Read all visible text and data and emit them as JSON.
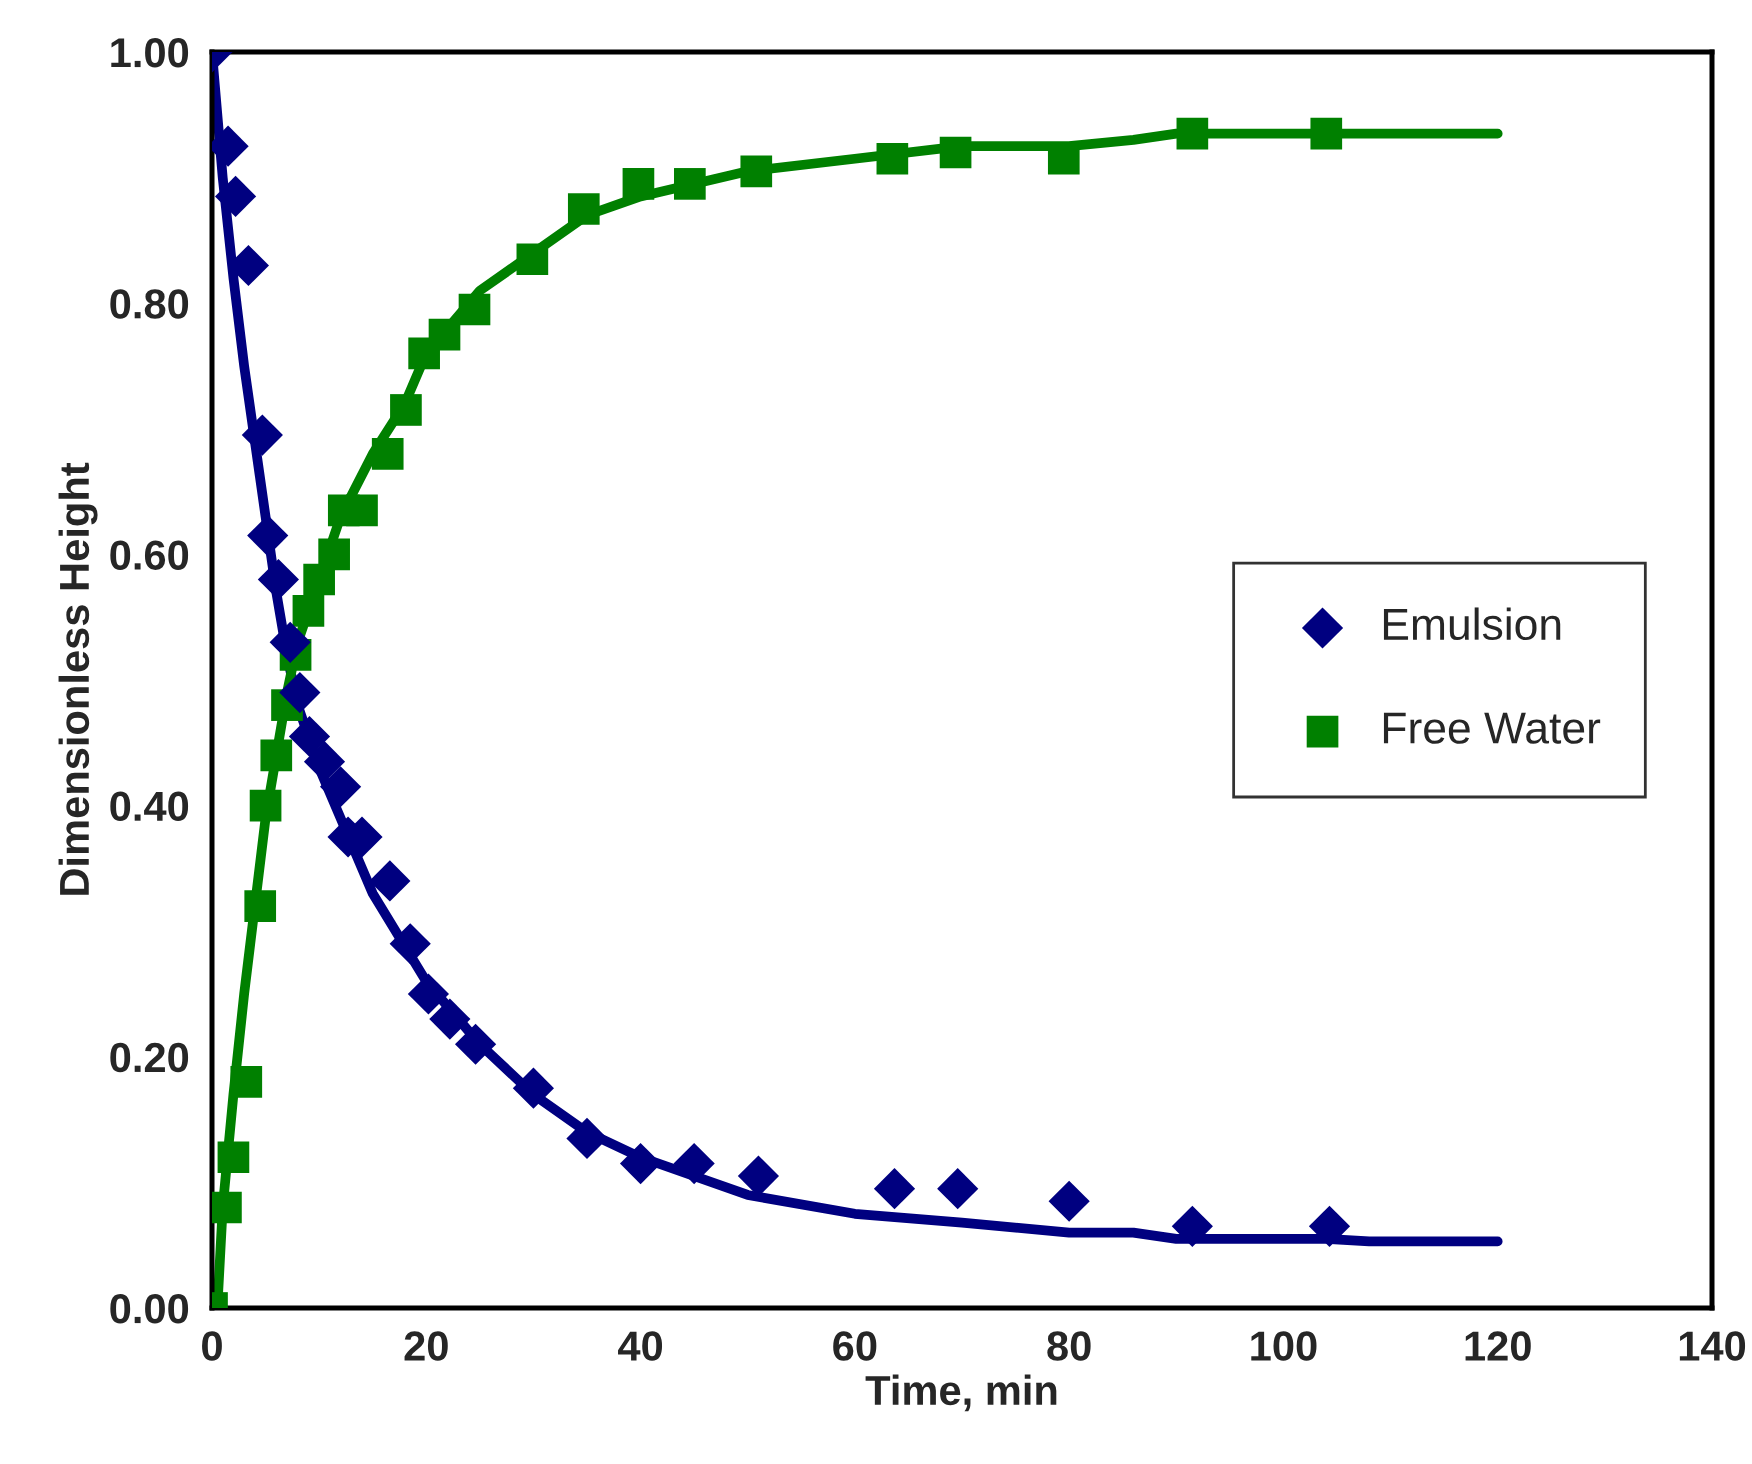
{
  "chart_data": {
    "type": "scatter",
    "xlabel": "Time, min",
    "ylabel": "Dimensionless Height",
    "xlim": [
      0,
      140
    ],
    "xticks": [
      0,
      20,
      40,
      60,
      80,
      100,
      120,
      140
    ],
    "ylim": [
      0,
      1
    ],
    "yticks": [
      {
        "value": 0,
        "label": "0.00"
      },
      {
        "value": 0.2,
        "label": "0.20"
      },
      {
        "value": 0.4,
        "label": "0.40"
      },
      {
        "value": 0.6,
        "label": "0.60"
      },
      {
        "value": 0.8,
        "label": "0.80"
      },
      {
        "value": 1,
        "label": "1.00"
      }
    ],
    "grid": false,
    "legend": "right",
    "series": [
      {
        "name": "Emulsion",
        "marker": "diamond",
        "color": "#000080",
        "x": [
          0,
          1.5,
          2.2,
          3.4,
          4.7,
          5.2,
          6.2,
          7.3,
          8.2,
          9.1,
          10.5,
          12,
          12.7,
          14,
          16.6,
          18.5,
          20.2,
          22.2,
          24.6,
          30,
          35,
          40,
          45,
          51,
          63.7,
          69.6,
          80,
          91.5,
          104.3
        ],
        "values": [
          1.0,
          0.925,
          0.885,
          0.83,
          0.695,
          0.615,
          0.58,
          0.53,
          0.49,
          0.455,
          0.435,
          0.415,
          0.375,
          0.375,
          0.34,
          0.29,
          0.25,
          0.23,
          0.21,
          0.175,
          0.135,
          0.115,
          0.115,
          0.105,
          0.095,
          0.095,
          0.085,
          0.065,
          0.065
        ]
      },
      {
        "name": "Free Water",
        "marker": "square",
        "color": "#008000",
        "x": [
          0,
          1.3,
          2,
          3.2,
          4.5,
          5,
          6,
          7,
          7.8,
          9,
          10,
          11.4,
          12.3,
          14,
          16.4,
          18.1,
          19.8,
          21.7,
          24.5,
          29.9,
          34.7,
          39.8,
          44.6,
          50.8,
          63.5,
          69.4,
          79.5,
          91.5,
          104
        ],
        "values": [
          0,
          0.08,
          0.12,
          0.18,
          0.32,
          0.4,
          0.44,
          0.48,
          0.52,
          0.555,
          0.58,
          0.6,
          0.635,
          0.635,
          0.68,
          0.715,
          0.76,
          0.775,
          0.795,
          0.835,
          0.875,
          0.895,
          0.895,
          0.905,
          0.915,
          0.92,
          0.915,
          0.935,
          0.935
        ]
      },
      {
        "type": "line",
        "marker": "none",
        "line_style": "solid",
        "color": "#000080",
        "x": [
          0,
          1,
          2,
          3,
          4,
          5,
          6,
          7,
          8,
          10,
          12,
          15,
          20,
          25,
          30,
          35,
          40,
          50,
          60,
          70,
          80,
          86,
          90,
          100,
          104,
          108,
          120
        ],
        "values": [
          1.0,
          0.9,
          0.82,
          0.75,
          0.69,
          0.63,
          0.57,
          0.52,
          0.48,
          0.43,
          0.39,
          0.33,
          0.26,
          0.21,
          0.17,
          0.14,
          0.12,
          0.09,
          0.075,
          0.068,
          0.06,
          0.06,
          0.055,
          0.055,
          0.055,
          0.053,
          0.053
        ]
      },
      {
        "type": "line",
        "marker": "none",
        "line_style": "solid",
        "color": "#008000",
        "x": [
          0.5,
          1,
          2,
          3,
          4,
          5,
          6,
          7,
          8,
          10,
          12,
          15,
          18,
          20,
          25,
          30,
          35,
          40,
          50,
          60,
          70,
          80,
          86,
          90,
          100,
          120
        ],
        "values": [
          0,
          0.08,
          0.17,
          0.25,
          0.32,
          0.39,
          0.44,
          0.49,
          0.53,
          0.58,
          0.63,
          0.68,
          0.72,
          0.76,
          0.81,
          0.84,
          0.87,
          0.885,
          0.905,
          0.915,
          0.925,
          0.925,
          0.93,
          0.935,
          0.935,
          0.935
        ]
      }
    ]
  }
}
